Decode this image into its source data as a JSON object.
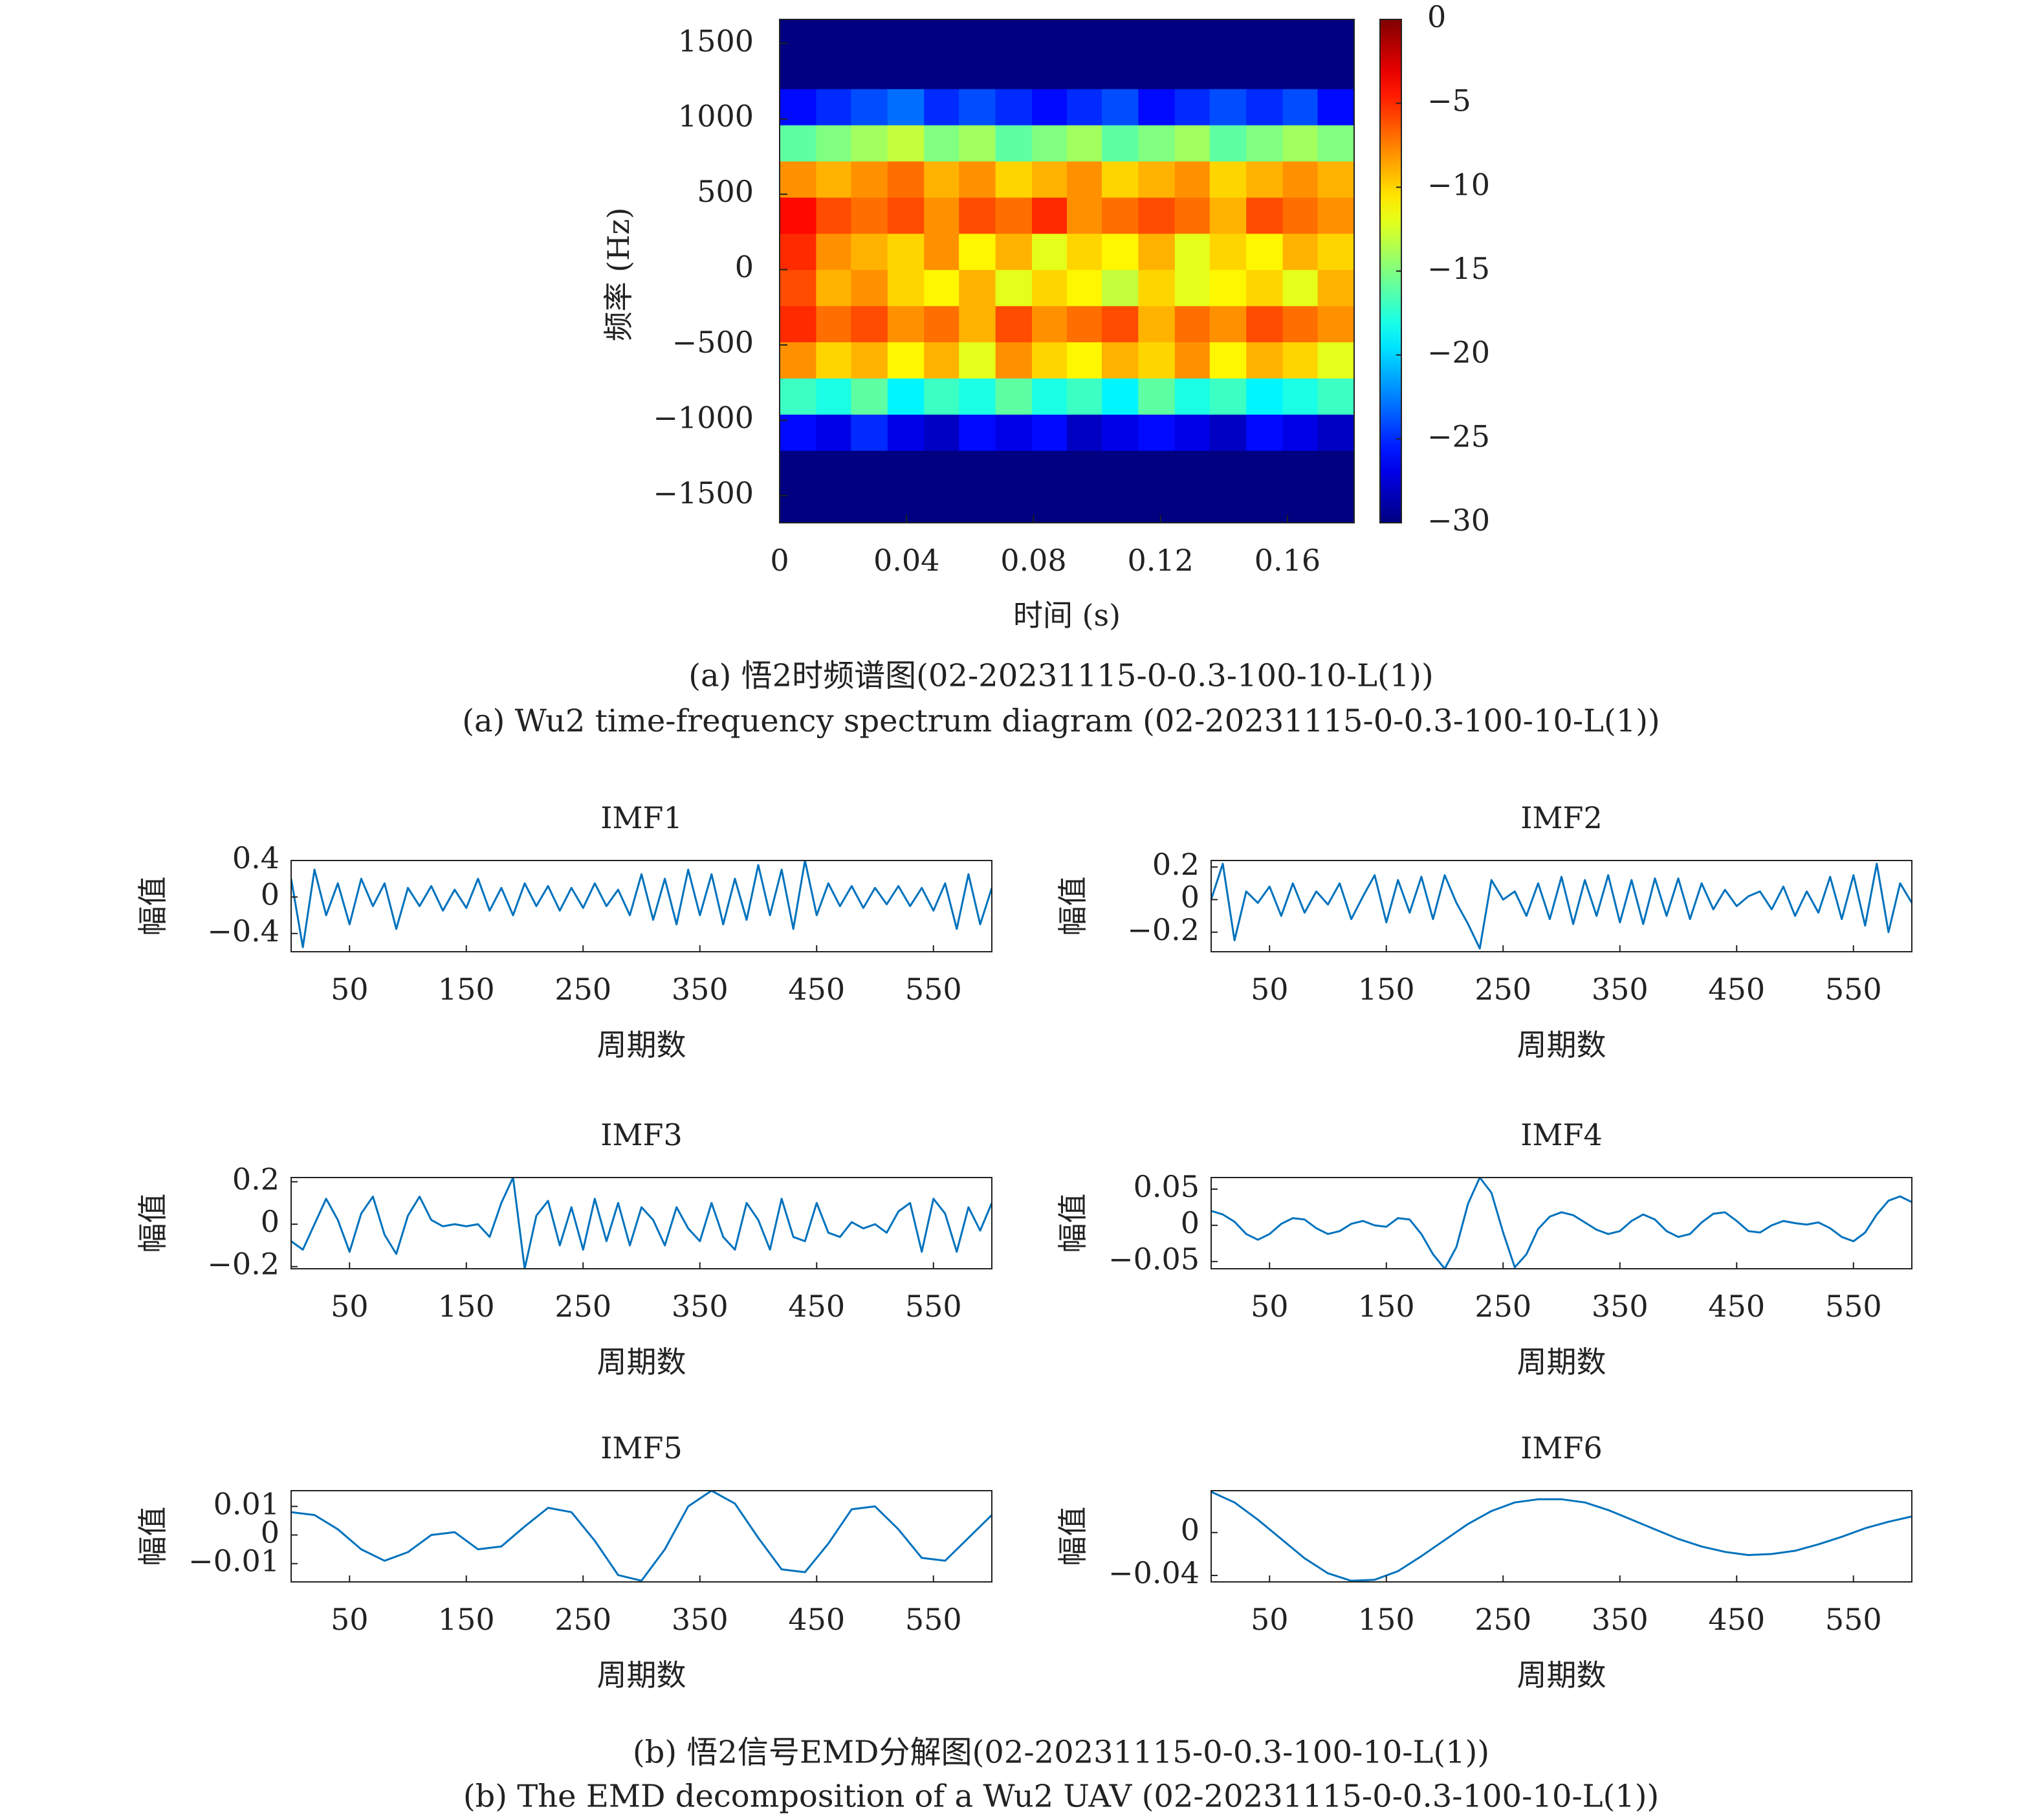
{
  "chart_data": [
    {
      "type": "heatmap",
      "x_label": "时间 (s)",
      "y_label": "频率 (Hz)",
      "x": [
        0.006,
        0.017,
        0.028,
        0.04,
        0.051,
        0.062,
        0.074,
        0.085,
        0.096,
        0.107,
        0.119,
        0.13,
        0.141,
        0.153,
        0.164,
        0.175
      ],
      "y": [
        -1560,
        -1320,
        -1080,
        -840,
        -600,
        -360,
        -120,
        120,
        360,
        600,
        840,
        1080,
        1320,
        1560
      ],
      "values": [
        [
          -30,
          -30,
          -30,
          -30,
          -30,
          -30,
          -30,
          -30,
          -30,
          -30,
          -30,
          -30,
          -30,
          -30,
          -30,
          -30
        ],
        [
          -30,
          -30,
          -30,
          -30,
          -30,
          -30,
          -30,
          -30,
          -30,
          -30,
          -30,
          -30,
          -30,
          -30,
          -30,
          -30
        ],
        [
          -26,
          -27,
          -25,
          -27,
          -28,
          -26,
          -27,
          -26,
          -28,
          -27,
          -26,
          -27,
          -28,
          -26,
          -27,
          -28
        ],
        [
          -17,
          -18,
          -16,
          -19,
          -17,
          -18,
          -16,
          -18,
          -17,
          -19,
          -16,
          -18,
          -17,
          -19,
          -18,
          -17
        ],
        [
          -8,
          -10,
          -9,
          -11,
          -9,
          -12,
          -8,
          -10,
          -11,
          -9,
          -10,
          -8,
          -11,
          -9,
          -10,
          -12
        ],
        [
          -5,
          -7,
          -6,
          -8,
          -7,
          -9,
          -6,
          -8,
          -7,
          -6,
          -9,
          -7,
          -8,
          -6,
          -7,
          -8
        ],
        [
          -6,
          -9,
          -8,
          -10,
          -11,
          -9,
          -12,
          -10,
          -11,
          -13,
          -10,
          -12,
          -11,
          -10,
          -12,
          -9
        ],
        [
          -5,
          -8,
          -9,
          -10,
          -8,
          -11,
          -9,
          -12,
          -10,
          -11,
          -9,
          -12,
          -10,
          -11,
          -9,
          -10
        ],
        [
          -4,
          -6,
          -7,
          -6,
          -8,
          -6,
          -7,
          -5,
          -8,
          -7,
          -6,
          -7,
          -9,
          -6,
          -7,
          -8
        ],
        [
          -8,
          -9,
          -8,
          -7,
          -9,
          -8,
          -10,
          -9,
          -8,
          -10,
          -9,
          -8,
          -10,
          -9,
          -8,
          -9
        ],
        [
          -16,
          -15,
          -14,
          -13,
          -15,
          -14,
          -16,
          -15,
          -14,
          -16,
          -15,
          -14,
          -16,
          -15,
          -14,
          -15
        ],
        [
          -26,
          -25,
          -24,
          -23,
          -25,
          -24,
          -25,
          -26,
          -25,
          -24,
          -26,
          -25,
          -24,
          -25,
          -24,
          -26
        ],
        [
          -30,
          -30,
          -30,
          -30,
          -30,
          -30,
          -30,
          -30,
          -30,
          -30,
          -30,
          -30,
          -30,
          -30,
          -30,
          -30
        ],
        [
          -30,
          -30,
          -30,
          -30,
          -30,
          -30,
          -30,
          -30,
          -30,
          -30,
          -30,
          -30,
          -30,
          -30,
          -30,
          -30
        ]
      ],
      "xlim": [
        0,
        0.181
      ],
      "ylim": [
        -1680,
        1660
      ],
      "xticks": [
        0,
        0.04,
        0.08,
        0.12,
        0.16
      ],
      "yticks": [
        {
          "value": -1500,
          "label": "−1500"
        },
        {
          "value": -1000,
          "label": "−1000"
        },
        {
          "value": -500,
          "label": "−500"
        },
        0,
        500,
        1000,
        1500
      ],
      "colormap": "jet",
      "clim": [
        -30,
        0
      ],
      "cticks": [
        0,
        {
          "value": -5,
          "label": "−5"
        },
        {
          "value": -10,
          "label": "−10"
        },
        {
          "value": -15,
          "label": "−15"
        },
        {
          "value": -20,
          "label": "−20"
        },
        {
          "value": -25,
          "label": "−25"
        },
        {
          "value": -30,
          "label": "−30"
        }
      ]
    },
    {
      "type": "line",
      "title": "IMF1",
      "x_label": "周期数",
      "y_label": "幅值",
      "x": [
        0,
        10,
        20,
        30,
        40,
        50,
        60,
        70,
        80,
        90,
        100,
        110,
        120,
        130,
        140,
        150,
        160,
        170,
        180,
        190,
        200,
        210,
        220,
        230,
        240,
        250,
        260,
        270,
        280,
        290,
        300,
        310,
        320,
        330,
        340,
        350,
        360,
        370,
        380,
        390,
        400,
        410,
        420,
        430,
        440,
        450,
        460,
        470,
        480,
        490,
        500,
        510,
        520,
        530,
        540,
        550,
        560,
        570,
        580,
        590,
        600
      ],
      "series": [
        {
          "color": "#0072bd",
          "values": [
            0.2,
            -0.55,
            0.3,
            -0.2,
            0.15,
            -0.3,
            0.2,
            -0.1,
            0.15,
            -0.35,
            0.1,
            -0.1,
            0.12,
            -0.15,
            0.08,
            -0.12,
            0.2,
            -0.15,
            0.1,
            -0.2,
            0.15,
            -0.1,
            0.12,
            -0.15,
            0.1,
            -0.12,
            0.15,
            -0.1,
            0.08,
            -0.2,
            0.25,
            -0.25,
            0.2,
            -0.3,
            0.3,
            -0.2,
            0.25,
            -0.3,
            0.2,
            -0.25,
            0.35,
            -0.2,
            0.3,
            -0.35,
            0.4,
            -0.2,
            0.15,
            -0.1,
            0.12,
            -0.12,
            0.1,
            -0.08,
            0.12,
            -0.1,
            0.1,
            -0.15,
            0.15,
            -0.35,
            0.25,
            -0.3,
            0.1
          ]
        }
      ],
      "xlim": [
        0,
        600
      ],
      "ylim": [
        -0.6,
        0.4
      ],
      "xticks": [
        50,
        150,
        250,
        350,
        450,
        550
      ],
      "yticks": [
        0.4,
        0,
        {
          "value": -0.4,
          "label": "−0.4"
        }
      ]
    },
    {
      "type": "line",
      "title": "IMF2",
      "x_label": "周期数",
      "y_label": "幅值",
      "x": [
        0,
        10,
        20,
        30,
        40,
        50,
        60,
        70,
        80,
        90,
        100,
        110,
        120,
        130,
        140,
        150,
        160,
        170,
        180,
        190,
        200,
        210,
        220,
        230,
        240,
        250,
        260,
        270,
        280,
        290,
        300,
        310,
        320,
        330,
        340,
        350,
        360,
        370,
        380,
        390,
        400,
        410,
        420,
        430,
        440,
        450,
        460,
        470,
        480,
        490,
        500,
        510,
        520,
        530,
        540,
        550,
        560,
        570,
        580,
        590,
        600
      ],
      "series": [
        {
          "color": "#0072bd",
          "values": [
            0.0,
            0.22,
            -0.25,
            0.05,
            -0.02,
            0.08,
            -0.1,
            0.1,
            -0.08,
            0.05,
            -0.03,
            0.1,
            -0.12,
            0.02,
            0.15,
            -0.14,
            0.12,
            -0.08,
            0.14,
            -0.12,
            0.15,
            -0.02,
            -0.15,
            -0.3,
            0.12,
            0.0,
            0.05,
            -0.1,
            0.1,
            -0.12,
            0.14,
            -0.15,
            0.12,
            -0.1,
            0.15,
            -0.14,
            0.12,
            -0.15,
            0.13,
            -0.1,
            0.13,
            -0.12,
            0.1,
            -0.06,
            0.06,
            -0.04,
            0.02,
            0.05,
            -0.06,
            0.08,
            -0.1,
            0.05,
            -0.08,
            0.14,
            -0.12,
            0.15,
            -0.16,
            0.22,
            -0.2,
            0.1,
            -0.02
          ]
        }
      ],
      "xlim": [
        0,
        600
      ],
      "ylim": [
        -0.32,
        0.24
      ],
      "xticks": [
        50,
        150,
        250,
        350,
        450,
        550
      ],
      "yticks": [
        0.2,
        0,
        {
          "value": -0.2,
          "label": "−0.2"
        }
      ]
    },
    {
      "type": "line",
      "title": "IMF3",
      "x_label": "周期数",
      "y_label": "幅值",
      "x": [
        0,
        10,
        20,
        30,
        40,
        50,
        60,
        70,
        80,
        90,
        100,
        110,
        120,
        130,
        140,
        150,
        160,
        170,
        180,
        190,
        200,
        210,
        220,
        230,
        240,
        250,
        260,
        270,
        280,
        290,
        300,
        310,
        320,
        330,
        340,
        350,
        360,
        370,
        380,
        390,
        400,
        410,
        420,
        430,
        440,
        450,
        460,
        470,
        480,
        490,
        500,
        510,
        520,
        530,
        540,
        550,
        560,
        570,
        580,
        590,
        600
      ],
      "series": [
        {
          "color": "#0072bd",
          "values": [
            -0.08,
            -0.12,
            0.0,
            0.12,
            0.02,
            -0.13,
            0.05,
            0.13,
            -0.05,
            -0.14,
            0.04,
            0.13,
            0.02,
            -0.01,
            0.0,
            -0.01,
            0.0,
            -0.06,
            0.1,
            0.22,
            -0.21,
            0.04,
            0.11,
            -0.1,
            0.08,
            -0.12,
            0.12,
            -0.08,
            0.1,
            -0.1,
            0.08,
            0.02,
            -0.1,
            0.08,
            -0.02,
            -0.08,
            0.1,
            -0.06,
            -0.12,
            0.1,
            0.02,
            -0.12,
            0.12,
            -0.06,
            -0.08,
            0.1,
            -0.04,
            -0.06,
            0.01,
            -0.02,
            0.0,
            -0.04,
            0.06,
            0.1,
            -0.13,
            0.12,
            0.05,
            -0.13,
            0.08,
            -0.03,
            0.1
          ]
        }
      ],
      "xlim": [
        0,
        600
      ],
      "ylim": [
        -0.21,
        0.22
      ],
      "xticks": [
        50,
        150,
        250,
        350,
        450,
        550
      ],
      "yticks": [
        0.2,
        0,
        {
          "value": -0.2,
          "label": "−0.2"
        }
      ]
    },
    {
      "type": "line",
      "title": "IMF4",
      "x_label": "周期数",
      "y_label": "幅值",
      "x": [
        0,
        10,
        20,
        30,
        40,
        50,
        60,
        70,
        80,
        90,
        100,
        110,
        120,
        130,
        140,
        150,
        160,
        170,
        180,
        190,
        200,
        210,
        220,
        230,
        240,
        250,
        260,
        270,
        280,
        290,
        300,
        310,
        320,
        330,
        340,
        350,
        360,
        370,
        380,
        390,
        400,
        410,
        420,
        430,
        440,
        450,
        460,
        470,
        480,
        490,
        500,
        510,
        520,
        530,
        540,
        550,
        560,
        570,
        580,
        590,
        600
      ],
      "series": [
        {
          "color": "#0072bd",
          "values": [
            0.02,
            0.015,
            0.005,
            -0.012,
            -0.02,
            -0.012,
            0.002,
            0.01,
            0.008,
            -0.004,
            -0.012,
            -0.008,
            0.002,
            0.006,
            0.0,
            -0.002,
            0.01,
            0.008,
            -0.012,
            -0.04,
            -0.06,
            -0.03,
            0.03,
            0.066,
            0.045,
            -0.01,
            -0.058,
            -0.04,
            -0.005,
            0.012,
            0.018,
            0.014,
            0.004,
            -0.006,
            -0.012,
            -0.008,
            0.006,
            0.015,
            0.008,
            -0.008,
            -0.016,
            -0.012,
            0.004,
            0.016,
            0.018,
            0.006,
            -0.008,
            -0.01,
            0.0,
            0.006,
            0.003,
            0.001,
            0.004,
            -0.004,
            -0.016,
            -0.022,
            -0.01,
            0.015,
            0.034,
            0.04,
            0.032
          ]
        }
      ],
      "xlim": [
        0,
        600
      ],
      "ylim": [
        -0.06,
        0.066
      ],
      "xticks": [
        50,
        150,
        250,
        350,
        450,
        550
      ],
      "yticks": [
        0.05,
        0,
        {
          "value": -0.05,
          "label": "−0.05"
        }
      ]
    },
    {
      "type": "line",
      "title": "IMF5",
      "x_label": "周期数",
      "y_label": "幅值",
      "x": [
        0,
        20,
        40,
        60,
        80,
        100,
        120,
        140,
        160,
        180,
        200,
        220,
        240,
        260,
        280,
        300,
        320,
        340,
        360,
        380,
        400,
        420,
        440,
        460,
        480,
        500,
        520,
        540,
        560,
        580,
        600
      ],
      "series": [
        {
          "color": "#0072bd",
          "values": [
            0.008,
            0.007,
            0.002,
            -0.005,
            -0.009,
            -0.006,
            0.0,
            0.001,
            -0.005,
            -0.004,
            0.003,
            0.0095,
            0.008,
            -0.002,
            -0.014,
            -0.016,
            -0.005,
            0.01,
            0.0155,
            0.011,
            -0.001,
            -0.012,
            -0.013,
            -0.003,
            0.009,
            0.01,
            0.002,
            -0.008,
            -0.009,
            -0.001,
            0.007
          ]
        }
      ],
      "xlim": [
        0,
        600
      ],
      "ylim": [
        -0.0164,
        0.0155
      ],
      "xticks": [
        50,
        150,
        250,
        350,
        450,
        550
      ],
      "yticks": [
        0.01,
        0,
        {
          "value": -0.01,
          "label": "−0.01"
        }
      ]
    },
    {
      "type": "line",
      "title": "IMF6",
      "x_label": "周期数",
      "y_label": "幅值",
      "x": [
        0,
        20,
        40,
        60,
        80,
        100,
        120,
        140,
        160,
        180,
        200,
        220,
        240,
        260,
        280,
        300,
        320,
        340,
        360,
        380,
        400,
        420,
        440,
        460,
        480,
        500,
        520,
        540,
        560,
        580,
        600
      ],
      "series": [
        {
          "color": "#0072bd",
          "values": [
            0.038,
            0.028,
            0.012,
            -0.006,
            -0.024,
            -0.038,
            -0.045,
            -0.044,
            -0.036,
            -0.022,
            -0.007,
            0.008,
            0.02,
            0.028,
            0.031,
            0.031,
            0.028,
            0.021,
            0.012,
            0.003,
            -0.006,
            -0.013,
            -0.018,
            -0.021,
            -0.02,
            -0.017,
            -0.011,
            -0.004,
            0.004,
            0.01,
            0.015
          ]
        }
      ],
      "xlim": [
        0,
        600
      ],
      "ylim": [
        -0.046,
        0.039
      ],
      "xticks": [
        50,
        150,
        250,
        350,
        450,
        550
      ],
      "yticks": [
        0,
        {
          "value": -0.04,
          "label": "−0.04"
        }
      ]
    }
  ],
  "captions": [
    {
      "zh": "(a) 悟2时频谱图(02-20231115-0-0.3-100-10-L(1))",
      "en": "(a) Wu2 time-frequency spectrum diagram (02-20231115-0-0.3-100-10-L(1))"
    },
    {
      "zh": "(b) 悟2信号EMD分解图(02-20231115-0-0.3-100-10-L(1))",
      "en": "(b) The EMD decomposition of a Wu2 UAV (02-20231115-0-0.3-100-10-L(1))"
    }
  ]
}
